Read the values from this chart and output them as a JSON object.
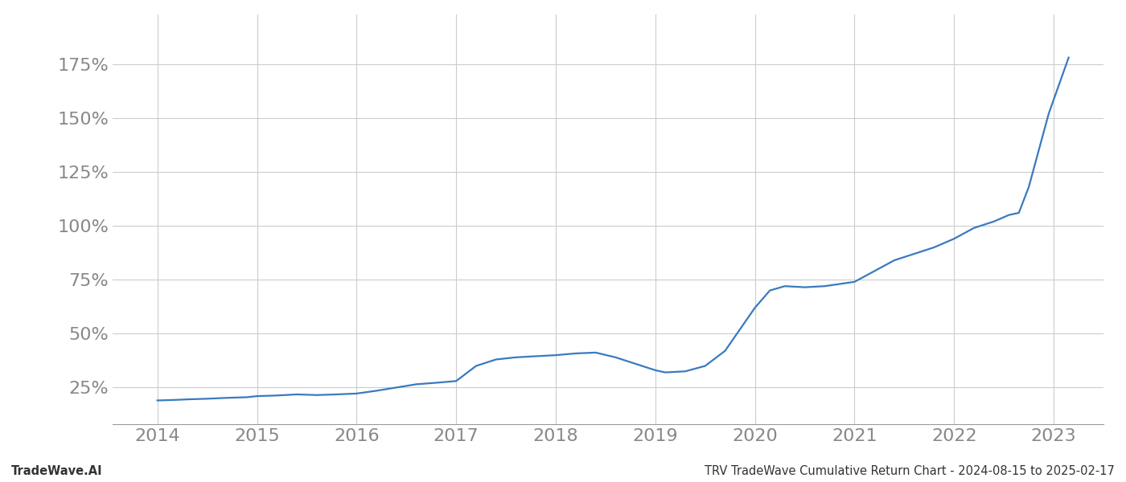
{
  "title": "",
  "footer_left": "TradeWave.AI",
  "footer_right": "TRV TradeWave Cumulative Return Chart - 2024-08-15 to 2025-02-17",
  "line_color": "#3a7abf",
  "background_color": "#ffffff",
  "grid_color": "#cccccc",
  "x_years": [
    2014,
    2015,
    2016,
    2017,
    2018,
    2019,
    2020,
    2021,
    2022,
    2023
  ],
  "data_points": [
    [
      2014.0,
      19
    ],
    [
      2014.15,
      19.2
    ],
    [
      2014.3,
      19.5
    ],
    [
      2014.5,
      19.8
    ],
    [
      2014.7,
      20.2
    ],
    [
      2014.9,
      20.5
    ],
    [
      2015.0,
      21
    ],
    [
      2015.2,
      21.3
    ],
    [
      2015.4,
      21.8
    ],
    [
      2015.6,
      21.5
    ],
    [
      2015.8,
      21.8
    ],
    [
      2016.0,
      22.2
    ],
    [
      2016.2,
      23.5
    ],
    [
      2016.4,
      25
    ],
    [
      2016.6,
      26.5
    ],
    [
      2016.8,
      27.2
    ],
    [
      2017.0,
      28
    ],
    [
      2017.2,
      35
    ],
    [
      2017.4,
      38
    ],
    [
      2017.6,
      39
    ],
    [
      2017.8,
      39.5
    ],
    [
      2018.0,
      40
    ],
    [
      2018.2,
      40.8
    ],
    [
      2018.4,
      41.2
    ],
    [
      2018.6,
      39
    ],
    [
      2018.8,
      36
    ],
    [
      2019.0,
      33
    ],
    [
      2019.1,
      32
    ],
    [
      2019.3,
      32.5
    ],
    [
      2019.5,
      35
    ],
    [
      2019.7,
      42
    ],
    [
      2019.85,
      52
    ],
    [
      2020.0,
      62
    ],
    [
      2020.15,
      70
    ],
    [
      2020.3,
      72
    ],
    [
      2020.5,
      71.5
    ],
    [
      2020.7,
      72
    ],
    [
      2021.0,
      74
    ],
    [
      2021.2,
      79
    ],
    [
      2021.4,
      84
    ],
    [
      2021.6,
      87
    ],
    [
      2021.8,
      90
    ],
    [
      2022.0,
      94
    ],
    [
      2022.2,
      99
    ],
    [
      2022.4,
      102
    ],
    [
      2022.55,
      105
    ],
    [
      2022.65,
      106
    ],
    [
      2022.75,
      118
    ],
    [
      2022.85,
      135
    ],
    [
      2022.95,
      152
    ],
    [
      2023.05,
      165
    ],
    [
      2023.15,
      178
    ]
  ],
  "yticks": [
    25,
    50,
    75,
    100,
    125,
    150,
    175
  ],
  "ylim": [
    8,
    198
  ],
  "xlim": [
    2013.55,
    2023.5
  ],
  "line_width": 1.6,
  "footer_fontsize": 10.5,
  "tick_fontsize": 16,
  "tick_color": "#888888",
  "footer_color": "#333333",
  "spine_color": "#999999"
}
